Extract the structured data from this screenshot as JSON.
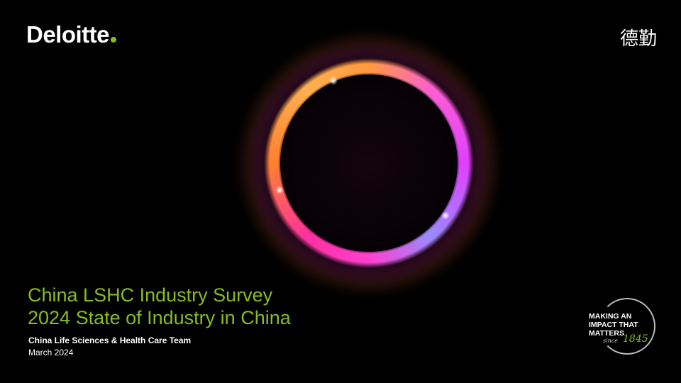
{
  "brand": {
    "logo_text": "Deloitte",
    "cn_logo": "德勤",
    "accent_color": "#86BC25"
  },
  "slide": {
    "title": "China LSHC Industry Survey",
    "subtitle": "2024 State of Industry in China",
    "team": "China Life Sciences & Health Care Team",
    "date": "March 2024"
  },
  "badge": {
    "line1": "MAKING AN",
    "line2": "IMPACT THAT",
    "line3": "MATTERS",
    "since": "since",
    "year": "1845"
  }
}
